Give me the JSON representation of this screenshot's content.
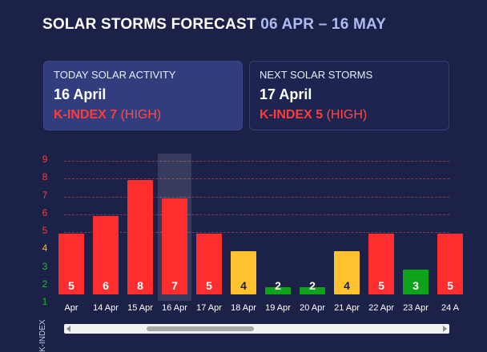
{
  "header": {
    "title": "SOLAR STORMS FORECAST",
    "range": "06 APR – 16 MAY"
  },
  "cards": {
    "today": {
      "label": "TODAY SOLAR ACTIVITY",
      "date": "16 April",
      "kindex": "K-INDEX 7",
      "level": "(HIGH)"
    },
    "next": {
      "label": "NEXT SOLAR STORMS",
      "date": "17 April",
      "kindex": "K-INDEX 5",
      "level": "(HIGH)"
    }
  },
  "colors": {
    "high": "#ff2e2e",
    "moderate": "#ffc22e",
    "low": "#0fa31b",
    "tick_high": "#ff3b3b",
    "tick_moderate": "#ffb82e",
    "tick_low": "#17c22a"
  },
  "chart_data": {
    "type": "bar",
    "ylabel": "K-INDEX",
    "ylim": [
      1,
      9
    ],
    "yticks": [
      "9",
      "8",
      "7",
      "6",
      "5",
      "4",
      "3",
      "2",
      "1"
    ],
    "categories": [
      "Apr",
      "14 Apr",
      "15 Apr",
      "16 Apr",
      "17 Apr",
      "18 Apr",
      "19 Apr",
      "20 Apr",
      "21 Apr",
      "22 Apr",
      "23 Apr",
      "24 A"
    ],
    "values": [
      5,
      6,
      8,
      7,
      5,
      4,
      2,
      2,
      4,
      5,
      3,
      5
    ],
    "labels": [
      "5",
      "6",
      "8",
      "7",
      "5",
      "4",
      "2",
      "2",
      "4",
      "5",
      "3",
      "5"
    ],
    "highlight_index": 3
  }
}
